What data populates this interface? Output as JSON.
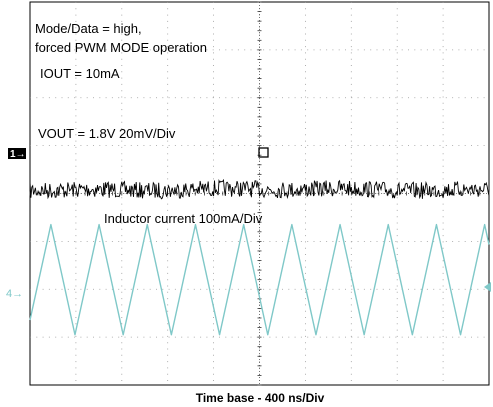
{
  "chart_data": {
    "type": "line",
    "title": "",
    "xlabel": "Time base - 400 ns/Div",
    "ylabel": "",
    "grid": true,
    "divisions": {
      "x": 10,
      "y": 8
    },
    "annotations": [
      "Mode/Data = high,",
      "forced PWM MODE operation",
      "IOUT = 10mA",
      "VOUT = 1.8V 20mV/Div",
      "Inductor current 100mA/Div"
    ],
    "channel_markers": [
      "1→",
      "4→"
    ],
    "series": [
      {
        "channel": "1",
        "color": "#000000",
        "vertical_scale": "20mV/Div",
        "shape": "noisy flat ripple",
        "ripple_divisions": 0.35
      },
      {
        "channel": "4",
        "color": "#7fc8c8",
        "vertical_scale": "100mA/Div",
        "shape": "triangle",
        "peak_divisions": [
          -0.85,
          1.45
        ],
        "period_divisions": 1.05,
        "phase_divisions": -0.07
      }
    ],
    "colors": {
      "grid": "#9a9a9a",
      "frame": "#000000",
      "ch1": "#000000",
      "ch4": "#7fc8c8"
    }
  }
}
